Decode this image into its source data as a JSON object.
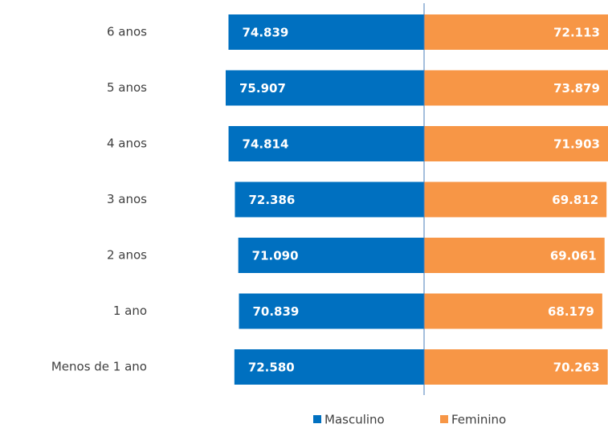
{
  "chart_data": {
    "type": "pyramid",
    "categories": [
      "6 anos",
      "5 anos",
      "4 anos",
      "3 anos",
      "2 anos",
      "1 ano",
      "Menos de 1 ano"
    ],
    "series": [
      {
        "name": "Masculino",
        "color": "#0070c0",
        "side": "left",
        "values": [
          74839,
          75907,
          74814,
          72386,
          71090,
          70839,
          72580
        ],
        "value_labels": [
          "74.839",
          "75.907",
          "74.814",
          "72.386",
          "71.090",
          "70.839",
          "72.580"
        ]
      },
      {
        "name": "Feminino",
        "color": "#f79646",
        "side": "right",
        "values": [
          72113,
          73879,
          71903,
          69812,
          69061,
          68179,
          70263
        ],
        "value_labels": [
          "72.113",
          "73.879",
          "71.903",
          "69.812",
          "69.061",
          "68.179",
          "70.263"
        ]
      }
    ]
  }
}
